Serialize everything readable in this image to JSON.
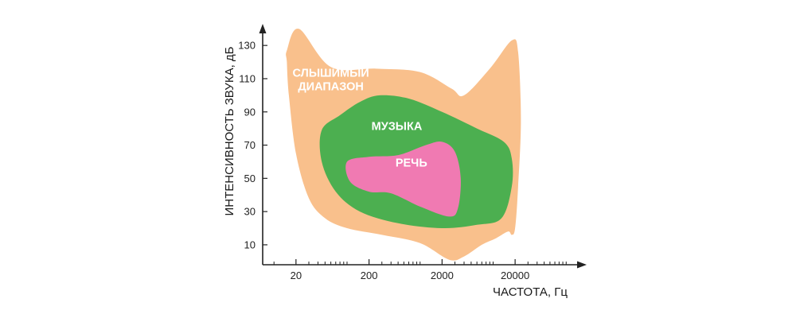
{
  "chart_data": {
    "type": "area",
    "title": "",
    "xlabel": "ЧАСТОТА, Гц",
    "ylabel": "ИНТЕНСИВНОСТЬ ЗВУКА, дБ",
    "x_scale": "log",
    "x_ticks": [
      {
        "value": 20,
        "label": "20"
      },
      {
        "value": 200,
        "label": "200"
      },
      {
        "value": 2000,
        "label": "2000"
      },
      {
        "value": 20000,
        "label": "20000"
      }
    ],
    "y_ticks": [
      10,
      30,
      50,
      70,
      90,
      110,
      130
    ],
    "xlim": [
      7,
      160000
    ],
    "ylim": [
      -2,
      143
    ],
    "grid": false,
    "series": [
      {
        "name": "СЛЫШИМЫЙ ДИАПАЗОН",
        "label_lines": [
          "СЛЫШИМЫЙ",
          "ДИАПАЗОН"
        ],
        "color": "#F9C08C",
        "points": [
          [
            15,
            127
          ],
          [
            22,
            140
          ],
          [
            60,
            117
          ],
          [
            250,
            116
          ],
          [
            1000,
            114
          ],
          [
            2700,
            104
          ],
          [
            4000,
            100
          ],
          [
            9000,
            116
          ],
          [
            18000,
            133
          ],
          [
            22000,
            126
          ],
          [
            24000,
            85
          ],
          [
            22000,
            45
          ],
          [
            20000,
            20
          ],
          [
            18000,
            16
          ],
          [
            16000,
            18
          ],
          [
            11000,
            14
          ],
          [
            7000,
            10
          ],
          [
            4000,
            3
          ],
          [
            2500,
            1
          ],
          [
            1000,
            11
          ],
          [
            300,
            16
          ],
          [
            100,
            20
          ],
          [
            50,
            26
          ],
          [
            30,
            38
          ],
          [
            20,
            65
          ],
          [
            16,
            100
          ],
          [
            15,
            120
          ]
        ]
      },
      {
        "name": "МУЗЫКА",
        "label_lines": [
          "МУЗЫКА"
        ],
        "color": "#4CAF50",
        "points": [
          [
            45,
            79
          ],
          [
            80,
            88
          ],
          [
            150,
            96
          ],
          [
            280,
            100
          ],
          [
            700,
            98
          ],
          [
            2000,
            90
          ],
          [
            6000,
            80
          ],
          [
            14000,
            72
          ],
          [
            18000,
            62
          ],
          [
            18000,
            45
          ],
          [
            13000,
            26
          ],
          [
            6000,
            22
          ],
          [
            2000,
            20
          ],
          [
            500,
            23
          ],
          [
            150,
            30
          ],
          [
            70,
            42
          ],
          [
            45,
            60
          ]
        ]
      },
      {
        "name": "РЕЧЬ",
        "label_lines": [
          "РЕЧЬ"
        ],
        "color": "#F07AB2",
        "points": [
          [
            100,
            60
          ],
          [
            200,
            63
          ],
          [
            500,
            64
          ],
          [
            1200,
            70
          ],
          [
            2000,
            72
          ],
          [
            3000,
            66
          ],
          [
            3600,
            50
          ],
          [
            3300,
            32
          ],
          [
            2500,
            27
          ],
          [
            1000,
            33
          ],
          [
            400,
            41
          ],
          [
            200,
            42
          ],
          [
            110,
            48
          ]
        ]
      }
    ]
  }
}
